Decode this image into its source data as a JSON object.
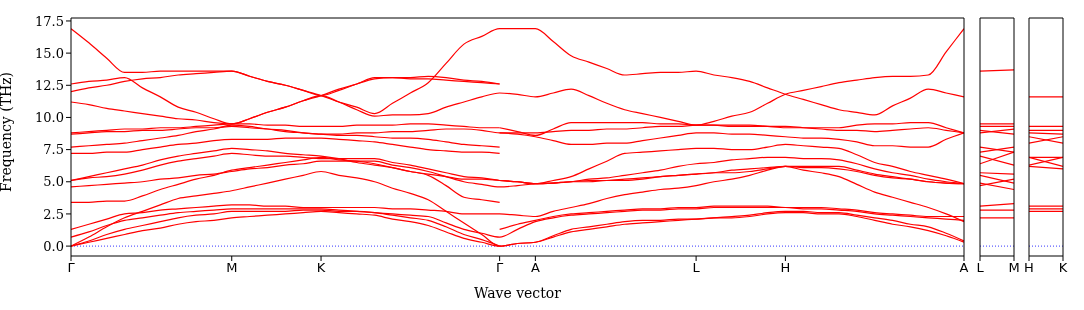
{
  "chart_data": [
    {
      "type": "line",
      "xlabel": "Wave vector",
      "ylabel": "Frequency (THz)",
      "ylim": [
        -0.77,
        17.73
      ],
      "categories": [
        "Γ",
        null,
        null,
        null,
        null,
        null,
        null,
        null,
        null,
        "M",
        null,
        null,
        null,
        null,
        "K",
        null,
        null,
        null,
        null,
        null,
        null,
        null,
        null,
        null,
        "Γ",
        null,
        "A",
        null,
        null,
        null,
        null,
        null,
        null,
        null,
        null,
        "L",
        null,
        null,
        null,
        null,
        "H",
        null,
        null,
        null,
        null,
        null,
        null,
        null,
        null,
        null,
        "A"
      ],
      "yticks": [
        {
          "value": 0,
          "label": "0.0"
        },
        {
          "value": 2.5,
          "label": "2.5"
        },
        {
          "value": 5,
          "label": "5.0"
        },
        {
          "value": 7.5,
          "label": "7.5"
        },
        {
          "value": 10,
          "label": "10.0"
        },
        {
          "value": 12.5,
          "label": "12.5"
        },
        {
          "value": 15,
          "label": "15.0"
        },
        {
          "value": 17.5,
          "label": "17.5"
        }
      ],
      "ref_lines": [
        {
          "axis": "y",
          "value": 0,
          "color": "#0000ff",
          "line_style": "dotted"
        }
      ],
      "series": [
        {
          "color": "#ff0000",
          "values": [
            16.9,
            15.8,
            14.6,
            13.5,
            13.5,
            13.6,
            13.6,
            13.6,
            13.6,
            13.6,
            13.2,
            12.8,
            12.5,
            12.1,
            11.7,
            11.2,
            10.8,
            10.3,
            11.1,
            11.9,
            12.7,
            14.2,
            15.7,
            16.3,
            16.9,
            16.9,
            16.9,
            15.9,
            14.8,
            14.3,
            13.8,
            13.3,
            13.4,
            13.5,
            13.5,
            13.6,
            13.3,
            13.1,
            12.8,
            12.3,
            11.8,
            11.4,
            11.0,
            10.6,
            10.4,
            10.2,
            10.9,
            11.5,
            12.2,
            11.9,
            11.6
          ]
        },
        {
          "color": "#ff0000",
          "values": [
            12.0,
            12.3,
            12.5,
            12.8,
            13.0,
            13.1,
            13.3,
            13.4,
            13.5,
            13.6,
            13.2,
            12.8,
            12.5,
            12.1,
            11.7,
            12.1,
            12.6,
            13.0,
            13.1,
            13.1,
            13.2,
            13.1,
            12.9,
            12.8,
            12.6,
            null,
            null,
            null,
            null,
            null,
            null,
            null,
            null,
            null,
            null,
            null,
            null,
            null,
            null,
            null,
            null,
            null,
            null,
            null,
            null,
            null,
            null,
            null,
            null,
            null,
            null
          ]
        },
        {
          "color": "#ff0000",
          "values": [
            12.6,
            12.8,
            12.9,
            13.1,
            12.3,
            11.6,
            10.8,
            10.4,
            9.9,
            9.5,
            9.9,
            10.4,
            10.8,
            11.3,
            11.7,
            11.2,
            10.6,
            10.1,
            10.2,
            10.2,
            10.3,
            10.8,
            11.2,
            11.6,
            11.9,
            11.8,
            11.6,
            11.9,
            12.2,
            11.7,
            11.1,
            10.6,
            10.3,
            10.0,
            9.7,
            9.4,
            9.7,
            10.1,
            10.4,
            11.1,
            11.8,
            12.1,
            12.4,
            12.7,
            12.9,
            13.1,
            13.2,
            13.2,
            13.3,
            15.1,
            16.9
          ]
        },
        {
          "color": "#ff0000",
          "values": [
            11.2,
            11.0,
            10.7,
            10.5,
            10.3,
            10.1,
            9.9,
            9.8,
            9.6,
            9.5,
            9.9,
            10.4,
            10.8,
            11.3,
            11.7,
            12.2,
            12.6,
            13.1,
            13.1,
            13.0,
            13.0,
            12.9,
            12.8,
            12.7,
            12.6,
            null,
            null,
            null,
            null,
            null,
            null,
            null,
            null,
            null,
            null,
            null,
            null,
            null,
            null,
            null,
            null,
            null,
            null,
            null,
            null,
            null,
            null,
            null,
            null,
            null,
            null
          ]
        },
        {
          "color": "#ff0000",
          "values": [
            8.8,
            8.9,
            9.0,
            9.1,
            9.1,
            9.2,
            9.2,
            9.3,
            9.4,
            9.5,
            9.5,
            9.4,
            9.4,
            9.3,
            9.3,
            9.3,
            9.4,
            9.4,
            9.4,
            9.5,
            9.5,
            9.4,
            9.3,
            9.2,
            9.2,
            null,
            null,
            null,
            null,
            null,
            null,
            null,
            null,
            null,
            null,
            null,
            null,
            null,
            null,
            null,
            null,
            null,
            null,
            null,
            null,
            null,
            null,
            null,
            null,
            null,
            null
          ]
        },
        {
          "color": "#ff0000",
          "values": [
            null,
            null,
            null,
            null,
            null,
            null,
            null,
            null,
            null,
            null,
            null,
            null,
            null,
            null,
            null,
            null,
            null,
            null,
            null,
            null,
            null,
            null,
            null,
            null,
            9.2,
            8.9,
            8.6,
            9.1,
            9.6,
            9.6,
            9.6,
            9.6,
            9.6,
            9.5,
            9.5,
            9.4,
            9.4,
            9.3,
            9.3,
            9.3,
            9.3,
            9.2,
            9.1,
            9.0,
            9.0,
            8.9,
            9.0,
            9.1,
            9.2,
            9.0,
            8.8
          ]
        },
        {
          "color": "#ff0000",
          "values": [
            8.7,
            8.8,
            8.9,
            8.9,
            9.0,
            9.0,
            9.1,
            9.2,
            9.2,
            9.3,
            9.2,
            9.1,
            8.9,
            8.8,
            8.7,
            8.7,
            8.8,
            8.8,
            8.9,
            8.9,
            9.0,
            9.1,
            9.1,
            9.0,
            8.8,
            8.8,
            8.8,
            8.9,
            9.0,
            9.0,
            9.1,
            9.1,
            9.2,
            9.3,
            9.3,
            9.4,
            9.4,
            9.4,
            9.4,
            9.3,
            9.2,
            9.2,
            9.2,
            9.2,
            9.4,
            9.5,
            9.5,
            9.6,
            9.6,
            9.2,
            8.8
          ]
        },
        {
          "color": "#ff0000",
          "values": [
            null,
            null,
            null,
            null,
            null,
            null,
            null,
            null,
            null,
            null,
            null,
            null,
            null,
            null,
            null,
            null,
            null,
            null,
            null,
            null,
            null,
            null,
            null,
            null,
            8.8,
            8.7,
            8.5,
            8.2,
            7.9,
            7.9,
            8.0,
            8.0,
            8.2,
            8.4,
            8.6,
            8.8,
            8.8,
            8.7,
            8.7,
            8.6,
            8.5,
            8.4,
            8.4,
            8.3,
            8.1,
            7.8,
            7.8,
            7.7,
            7.7,
            8.3,
            8.8
          ]
        },
        {
          "color": "#ff0000",
          "values": [
            7.7,
            7.8,
            7.9,
            8.0,
            8.2,
            8.4,
            8.6,
            8.9,
            9.1,
            9.4,
            9.3,
            9.1,
            9.0,
            8.8,
            8.7,
            8.6,
            8.6,
            8.5,
            8.4,
            8.4,
            8.3,
            8.1,
            7.9,
            7.8,
            7.7,
            null,
            null,
            null,
            null,
            null,
            null,
            null,
            null,
            null,
            null,
            null,
            null,
            null,
            null,
            null,
            null,
            null,
            null,
            null,
            null,
            null,
            null,
            null,
            null,
            null,
            null
          ]
        },
        {
          "color": "#ff0000",
          "values": [
            7.2,
            7.2,
            7.3,
            7.3,
            7.5,
            7.7,
            7.9,
            8.0,
            8.2,
            8.3,
            8.3,
            8.3,
            8.4,
            8.4,
            8.4,
            8.3,
            8.2,
            8.1,
            7.9,
            7.7,
            7.5,
            7.4,
            7.3,
            7.3,
            7.2,
            null,
            null,
            null,
            null,
            null,
            null,
            null,
            null,
            null,
            null,
            null,
            null,
            null,
            null,
            null,
            null,
            null,
            null,
            null,
            null,
            null,
            null,
            null,
            null,
            null,
            null
          ]
        },
        {
          "color": "#ff0000",
          "values": [
            5.1,
            5.4,
            5.7,
            6.0,
            6.3,
            6.7,
            7.0,
            7.2,
            7.4,
            7.6,
            7.5,
            7.4,
            7.2,
            7.1,
            7.0,
            6.8,
            6.5,
            6.3,
            6.1,
            5.8,
            5.6,
            5.4,
            5.2,
            5.2,
            5.1,
            5.0,
            4.85,
            5.1,
            5.4,
            6.0,
            6.6,
            7.2,
            7.3,
            7.4,
            7.5,
            7.6,
            7.6,
            7.5,
            7.5,
            7.7,
            7.9,
            7.8,
            7.7,
            7.6,
            7.1,
            6.5,
            6.2,
            5.8,
            5.5,
            5.2,
            4.85
          ]
        },
        {
          "color": "#ff0000",
          "values": [
            null,
            null,
            null,
            null,
            null,
            null,
            null,
            null,
            null,
            null,
            null,
            null,
            null,
            null,
            null,
            null,
            null,
            null,
            null,
            null,
            null,
            null,
            null,
            null,
            5.1,
            5.0,
            4.85,
            4.9,
            5.0,
            5.2,
            5.3,
            5.5,
            5.7,
            5.9,
            6.2,
            6.4,
            6.5,
            6.7,
            6.8,
            6.9,
            6.9,
            6.8,
            6.8,
            6.7,
            6.4,
            6.0,
            5.7,
            5.5,
            5.2,
            5.0,
            4.85
          ]
        },
        {
          "color": "#ff0000",
          "values": [
            5.1,
            5.3,
            5.4,
            5.6,
            5.9,
            6.3,
            6.6,
            6.8,
            7.0,
            7.2,
            7.1,
            7.0,
            7.0,
            6.9,
            6.8,
            6.8,
            6.8,
            6.8,
            6.5,
            6.3,
            6.0,
            5.7,
            5.4,
            5.3,
            5.1,
            5.0,
            4.85,
            4.9,
            5.0,
            5.0,
            5.1,
            5.1,
            5.2,
            5.4,
            5.5,
            5.6,
            5.7,
            5.7,
            5.8,
            6.0,
            6.2,
            5.9,
            5.7,
            5.4,
            4.8,
            4.2,
            3.8,
            3.4,
            3.0,
            2.5,
            1.9
          ]
        },
        {
          "color": "#ff0000",
          "values": [
            4.6,
            4.7,
            4.8,
            4.9,
            5.0,
            5.2,
            5.3,
            5.5,
            5.6,
            5.8,
            6.0,
            6.1,
            6.3,
            6.4,
            6.6,
            6.6,
            6.6,
            6.6,
            6.3,
            6.1,
            5.8,
            5.4,
            5.0,
            4.8,
            4.6,
            4.7,
            4.85,
            4.9,
            5.0,
            5.1,
            5.1,
            5.2,
            5.3,
            5.4,
            5.5,
            5.6,
            5.7,
            5.9,
            6.0,
            6.1,
            6.2,
            6.2,
            6.2,
            6.2,
            5.9,
            5.6,
            5.4,
            5.2,
            5.0,
            4.9,
            4.85
          ]
        },
        {
          "color": "#ff0000",
          "values": [
            3.4,
            3.4,
            3.5,
            3.5,
            3.9,
            4.4,
            4.8,
            5.2,
            5.5,
            5.9,
            6.1,
            6.3,
            6.5,
            6.7,
            6.9,
            6.7,
            6.6,
            6.4,
            6.1,
            5.8,
            5.5,
            4.7,
            3.8,
            3.6,
            3.4,
            null,
            null,
            null,
            null,
            null,
            null,
            null,
            null,
            null,
            null,
            null,
            null,
            null,
            null,
            null,
            null,
            null,
            null,
            null,
            null,
            null,
            null,
            null,
            null,
            null,
            null
          ]
        },
        {
          "color": "#ff0000",
          "values": [
            0,
            0.7,
            1.5,
            2.2,
            2.7,
            3.2,
            3.7,
            3.9,
            4.1,
            4.3,
            4.6,
            4.9,
            5.2,
            5.5,
            5.8,
            5.5,
            5.3,
            5.0,
            4.5,
            4.1,
            3.6,
            2.7,
            1.8,
            0.9,
            0,
            0.2,
            0.3,
            0.8,
            1.3,
            1.5,
            1.7,
            1.9,
            2.0,
            2.0,
            2.1,
            2.1,
            2.2,
            2.3,
            2.4,
            2.6,
            2.7,
            2.7,
            2.6,
            2.6,
            2.4,
            2.2,
            2.0,
            1.7,
            1.5,
            1.0,
            0.4
          ]
        },
        {
          "color": "#ff0000",
          "values": [
            1.3,
            1.7,
            2.1,
            2.5,
            2.6,
            2.8,
            2.9,
            3.0,
            3.1,
            3.2,
            3.2,
            3.1,
            3.1,
            3.0,
            3.0,
            3.0,
            3.0,
            3.0,
            2.9,
            2.9,
            2.8,
            2.7,
            2.5,
            2.5,
            2.5,
            2.4,
            2.3,
            2.7,
            3.0,
            3.3,
            3.7,
            4.0,
            4.2,
            4.4,
            4.5,
            4.7,
            5.0,
            5.2,
            5.5,
            5.9,
            6.2,
            6.1,
            6.1,
            6.0,
            5.8,
            5.5,
            5.3,
            5.2,
            5.0,
            4.9,
            4.85
          ]
        },
        {
          "color": "#ff0000",
          "values": [
            null,
            null,
            null,
            null,
            null,
            null,
            null,
            null,
            null,
            null,
            null,
            null,
            null,
            null,
            null,
            null,
            null,
            null,
            null,
            null,
            null,
            null,
            null,
            null,
            1.3,
            1.7,
            2.0,
            2.3,
            2.5,
            2.6,
            2.7,
            2.8,
            2.9,
            2.9,
            3.0,
            3.0,
            3.1,
            3.1,
            3.1,
            3.1,
            3.0,
            3.0,
            3.0,
            2.9,
            2.8,
            2.6,
            2.5,
            2.4,
            2.3,
            2.3,
            2.3
          ]
        },
        {
          "color": "#ff0000",
          "values": [
            0.7,
            1.1,
            1.6,
            2.0,
            2.2,
            2.4,
            2.6,
            2.7,
            2.8,
            2.9,
            2.9,
            2.9,
            2.9,
            2.9,
            2.9,
            2.8,
            2.7,
            2.6,
            2.5,
            2.4,
            2.3,
            1.8,
            1.3,
            1.0,
            0.7,
            1.3,
            1.9,
            2.2,
            2.4,
            2.5,
            2.6,
            2.7,
            2.8,
            2.8,
            2.9,
            2.9,
            3.0,
            3.0,
            3.0,
            3.0,
            3.0,
            2.9,
            2.9,
            2.8,
            2.7,
            2.5,
            2.4,
            2.3,
            2.2,
            2.1,
            2.0
          ]
        },
        {
          "color": "#ff0000",
          "values": [
            0,
            0.4,
            0.9,
            1.3,
            1.6,
            1.9,
            2.2,
            2.4,
            2.5,
            2.7,
            2.7,
            2.7,
            2.7,
            2.8,
            2.8,
            2.7,
            2.7,
            2.6,
            2.4,
            2.2,
            2.0,
            1.5,
            0.9,
            0.5,
            0,
            null,
            null,
            null,
            null,
            null,
            null,
            null,
            null,
            null,
            null,
            null,
            null,
            null,
            null,
            null,
            null,
            null,
            null,
            null,
            null,
            null,
            null,
            null,
            null,
            null,
            null
          ]
        },
        {
          "color": "#ff0000",
          "values": [
            0,
            0.3,
            0.6,
            0.9,
            1.2,
            1.4,
            1.7,
            1.9,
            2.0,
            2.2,
            2.3,
            2.4,
            2.5,
            2.6,
            2.7,
            2.6,
            2.5,
            2.4,
            2.1,
            1.9,
            1.6,
            1.1,
            0.6,
            0.3,
            0,
            0.2,
            0.3,
            0.7,
            1.1,
            1.3,
            1.5,
            1.7,
            1.8,
            1.9,
            2.0,
            2.1,
            2.2,
            2.2,
            2.3,
            2.5,
            2.6,
            2.6,
            2.5,
            2.5,
            2.3,
            2.0,
            1.7,
            1.5,
            1.2,
            0.8,
            0.3
          ]
        }
      ]
    },
    {
      "type": "line",
      "tick_labels": "x",
      "ylim": [
        -0.77,
        17.73
      ],
      "categories": [
        "L",
        "M"
      ],
      "ref_lines": [
        {
          "axis": "y",
          "value": 0,
          "color": "#0000ff",
          "line_style": "dotted"
        }
      ],
      "series": [
        {
          "color": "#ff0000",
          "values": [
            13.6,
            13.7
          ]
        },
        {
          "color": "#ff0000",
          "values": [
            9.5,
            9.5
          ]
        },
        {
          "color": "#ff0000",
          "values": [
            9.3,
            9.3
          ]
        },
        {
          "color": "#ff0000",
          "values": [
            8.8,
            9.1
          ]
        },
        {
          "color": "#ff0000",
          "values": [
            9.0,
            8.7
          ]
        },
        {
          "color": "#ff0000",
          "values": [
            7.7,
            7.3
          ]
        },
        {
          "color": "#ff0000",
          "values": [
            7.3,
            7.7
          ]
        },
        {
          "color": "#ff0000",
          "values": [
            6.4,
            7.3
          ]
        },
        {
          "color": "#ff0000",
          "values": [
            7.0,
            6.3
          ]
        },
        {
          "color": "#ff0000",
          "values": [
            5.7,
            5.6
          ]
        },
        {
          "color": "#ff0000",
          "values": [
            5.5,
            4.9
          ]
        },
        {
          "color": "#ff0000",
          "values": [
            4.7,
            5.2
          ]
        },
        {
          "color": "#ff0000",
          "values": [
            4.9,
            4.4
          ]
        },
        {
          "color": "#ff0000",
          "values": [
            3.1,
            3.3
          ]
        },
        {
          "color": "#ff0000",
          "values": [
            2.8,
            2.8
          ]
        },
        {
          "color": "#ff0000",
          "values": [
            2.2,
            2.2
          ]
        }
      ]
    },
    {
      "type": "line",
      "tick_labels": "x",
      "ylim": [
        -0.77,
        17.73
      ],
      "categories": [
        "H",
        "K"
      ],
      "yticks": [
        {
          "value": 0,
          "label": null
        },
        {
          "value": 2.5,
          "label": null
        },
        {
          "value": 5,
          "label": null
        },
        {
          "value": 7.5,
          "label": null
        },
        {
          "value": 10,
          "label": null
        },
        {
          "value": 12.5,
          "label": null
        },
        {
          "value": 15,
          "label": null
        },
        {
          "value": 17.5,
          "label": null
        }
      ],
      "ref_lines": [
        {
          "axis": "y",
          "value": 0,
          "color": "#0000ff",
          "line_style": "dotted"
        }
      ],
      "series": [
        {
          "color": "#ff0000",
          "values": [
            11.6,
            11.6
          ]
        },
        {
          "color": "#ff0000",
          "values": [
            9.3,
            9.3
          ]
        },
        {
          "color": "#ff0000",
          "values": [
            9.0,
            9.0
          ]
        },
        {
          "color": "#ff0000",
          "values": [
            8.8,
            8.7
          ]
        },
        {
          "color": "#ff0000",
          "values": [
            8.5,
            8.0
          ]
        },
        {
          "color": "#ff0000",
          "values": [
            8.0,
            8.5
          ]
        },
        {
          "color": "#ff0000",
          "values": [
            6.9,
            6.9
          ]
        },
        {
          "color": "#ff0000",
          "values": [
            6.3,
            6.9
          ]
        },
        {
          "color": "#ff0000",
          "values": [
            6.9,
            6.2
          ]
        },
        {
          "color": "#ff0000",
          "values": [
            6.2,
            6.0
          ]
        },
        {
          "color": "#ff0000",
          "values": [
            3.1,
            3.1
          ]
        },
        {
          "color": "#ff0000",
          "values": [
            2.9,
            2.9
          ]
        },
        {
          "color": "#ff0000",
          "values": [
            2.7,
            2.7
          ]
        }
      ]
    }
  ]
}
